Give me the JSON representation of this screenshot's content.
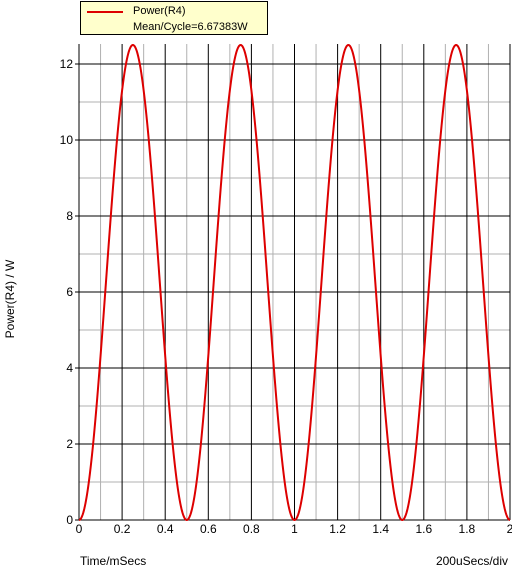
{
  "legend": {
    "series_name": "Power(R4)",
    "mean_text": "Mean/Cycle=6.67383W"
  },
  "axis": {
    "ylabel": "Power(R4) / W",
    "xlabel": "Time/mSecs",
    "scale_note": "200uSecs/div"
  },
  "colors": {
    "series": "#dd0000",
    "legend_bg": "#ffffcc",
    "grid_major": "#000000",
    "grid_minor": "#b0b0b0"
  },
  "chart_data": {
    "type": "line",
    "series": [
      {
        "name": "Power(R4)",
        "description_formula_peak": 12.5,
        "x_start": 0,
        "x_end": 2,
        "period": 0.5
      }
    ],
    "xlim": [
      0,
      2
    ],
    "ylim": [
      0,
      12.5
    ],
    "xticks": [
      "0",
      "0.2",
      "0.4",
      "0.6",
      "0.8",
      "1",
      "1.2",
      "1.4",
      "1.6",
      "1.8",
      "2"
    ],
    "yticks": [
      "0",
      "2",
      "4",
      "6",
      "8",
      "10",
      "12"
    ],
    "grid": true
  }
}
